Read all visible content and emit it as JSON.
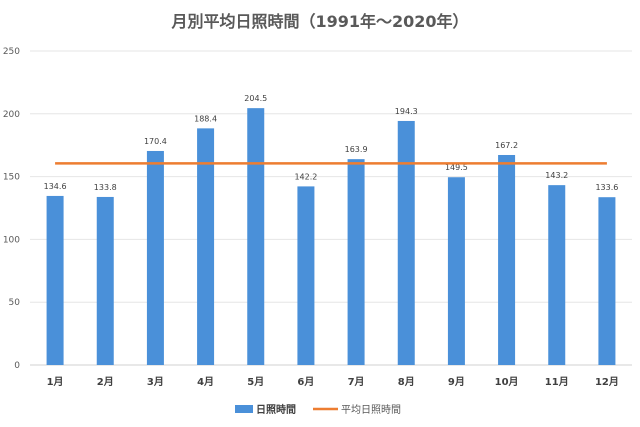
{
  "chart_data": {
    "type": "bar",
    "title": "月別平均日照時間（1991年～2020年）",
    "xlabel": "",
    "ylabel": "",
    "categories": [
      "1月",
      "2月",
      "3月",
      "4月",
      "5月",
      "6月",
      "7月",
      "8月",
      "9月",
      "10月",
      "11月",
      "12月"
    ],
    "series": [
      {
        "name": "日照時間",
        "type": "bar",
        "color": "#4a90d9",
        "values": [
          134.6,
          133.8,
          170.4,
          188.4,
          204.5,
          142.2,
          163.9,
          194.3,
          149.5,
          167.2,
          143.2,
          133.6
        ],
        "data_labels": [
          "134.6",
          "133.8",
          "170.4",
          "188.4",
          "204.5",
          "142.2",
          "163.9",
          "194.3",
          "149.5",
          "167.2",
          "143.2",
          "133.6"
        ]
      },
      {
        "name": "平均日照時間",
        "type": "line",
        "color": "#ed7d31",
        "values": [
          160.5,
          160.5,
          160.5,
          160.5,
          160.5,
          160.5,
          160.5,
          160.5,
          160.5,
          160.5,
          160.5,
          160.5
        ]
      }
    ],
    "ylim": [
      0,
      250
    ],
    "yticks": [
      "0",
      "50",
      "100",
      "150",
      "200",
      "250"
    ],
    "ytick_values": [
      0,
      50,
      100,
      150,
      200,
      250
    ],
    "grid": true,
    "legend_position": "bottom"
  }
}
